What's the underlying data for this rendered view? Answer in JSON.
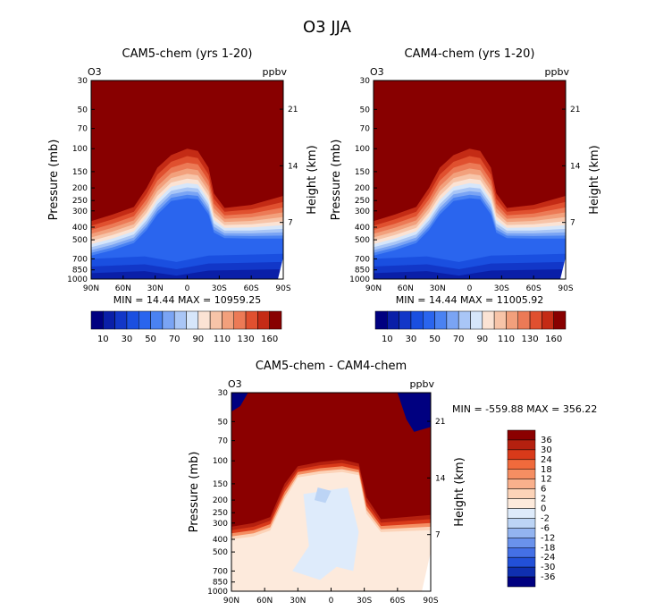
{
  "title": "O3 JJA",
  "colors": {
    "full_scale": [
      "#000080",
      "#0a1fa8",
      "#1237c8",
      "#1a4fe0",
      "#2a65ee",
      "#4a82f2",
      "#7aa4f4",
      "#a9c6f6",
      "#d6e6fa",
      "#fbe3d4",
      "#f7c4a8",
      "#f2a07c",
      "#ec7a56",
      "#e0502f",
      "#c42b15",
      "#880000"
    ],
    "diff_scale": [
      "#8b0000",
      "#b5200f",
      "#d93a1a",
      "#f06a3c",
      "#f58e62",
      "#f9b08c",
      "#fcd3b8",
      "#fdeadc",
      "#deebfb",
      "#bcd4f5",
      "#93b4f0",
      "#6a92ec",
      "#4470e6",
      "#2250d8",
      "#0f2fb0",
      "#000080"
    ]
  },
  "charts": [
    {
      "name": "cam5",
      "title": "CAM5-chem (yrs 1-20)",
      "var_label": "O3",
      "unit_label": "ppbv",
      "ylabel": "Pressure (mb)",
      "ylabel_right": "Height (km)",
      "stats": "MIN =   14.44  MAX = 10959.25",
      "min": 14.44,
      "max": 10959.25
    },
    {
      "name": "cam4",
      "title": "CAM4-chem (yrs 1-20)",
      "var_label": "O3",
      "unit_label": "ppbv",
      "ylabel": "Pressure (mb)",
      "ylabel_right": "Height (km)",
      "stats": "MIN =   14.44  MAX = 11005.92",
      "min": 14.44,
      "max": 11005.92
    },
    {
      "name": "diff",
      "title": "CAM5-chem - CAM4-chem",
      "var_label": "O3",
      "unit_label": "ppbv",
      "ylabel": "Pressure (mb)",
      "ylabel_right": "Height (km)",
      "stats": "MIN = -559.88  MAX = 356.22",
      "min": -559.88,
      "max": 356.22
    }
  ],
  "chart_data": {
    "type": "heatmap",
    "x_ticks": [
      "90N",
      "60N",
      "30N",
      "0",
      "30S",
      "60S",
      "90S"
    ],
    "x_values": [
      90,
      60,
      30,
      0,
      -30,
      -60,
      -90
    ],
    "y_ticks": [
      "30",
      "50",
      "70",
      "100",
      "150",
      "200",
      "250",
      "300",
      "400",
      "500",
      "700",
      "850",
      "1000"
    ],
    "y_values": [
      30,
      50,
      70,
      100,
      150,
      200,
      250,
      300,
      400,
      500,
      700,
      850,
      1000
    ],
    "ylim": [
      1000,
      30
    ],
    "y_right_ticks": [
      "21",
      "14",
      "7"
    ],
    "y_right_values": [
      21,
      14,
      7
    ],
    "full_colorbar_labels": [
      "10",
      "30",
      "50",
      "70",
      "90",
      "110",
      "130",
      "160"
    ],
    "diff_colorbar_labels": [
      "36",
      "30",
      "24",
      "18",
      "12",
      "6",
      "2",
      "0",
      "-2",
      "-6",
      "-12",
      "-18",
      "-24",
      "-30",
      "-36"
    ]
  }
}
